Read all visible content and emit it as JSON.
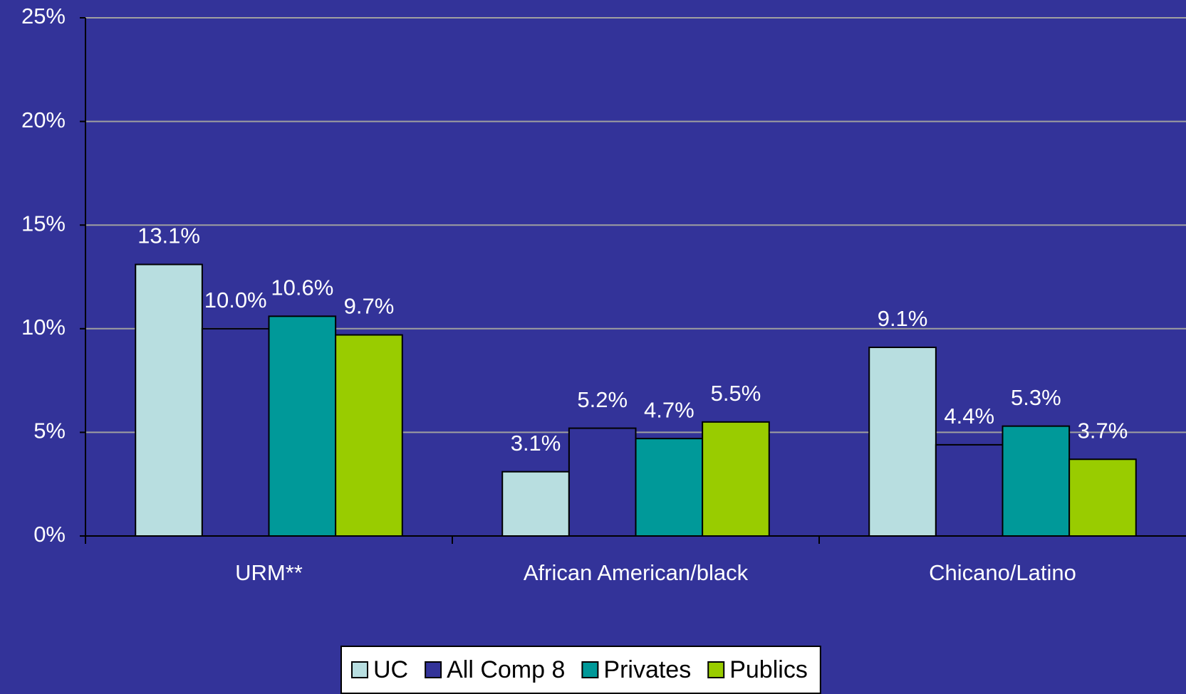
{
  "chart_data": {
    "type": "bar",
    "categories": [
      "URM**",
      "African American/black",
      "Chicano/Latino"
    ],
    "series": [
      {
        "name": "UC",
        "color": "#b8dee0",
        "values": [
          13.1,
          3.1,
          9.1
        ],
        "value_labels": [
          "13.1%",
          "3.1%",
          "9.1%"
        ]
      },
      {
        "name": "All Comp 8",
        "color": "#333399",
        "values": [
          10.0,
          5.2,
          4.4
        ],
        "value_labels": [
          "10.0%",
          "5.2%",
          "4.4%"
        ]
      },
      {
        "name": "Privates",
        "color": "#009999",
        "values": [
          10.6,
          4.7,
          5.3
        ],
        "value_labels": [
          "10.6%",
          "4.7%",
          "5.3%"
        ]
      },
      {
        "name": "Publics",
        "color": "#99cc00",
        "values": [
          9.7,
          5.5,
          3.7
        ],
        "value_labels": [
          "9.7%",
          "5.5%",
          "3.7%"
        ]
      }
    ],
    "ylim": [
      0,
      25
    ],
    "yticks": [
      {
        "value": 0,
        "label": "0%"
      },
      {
        "value": 5,
        "label": "5%"
      },
      {
        "value": 10,
        "label": "10%"
      },
      {
        "value": 15,
        "label": "15%"
      },
      {
        "value": 20,
        "label": "20%"
      },
      {
        "value": 25,
        "label": "25%"
      }
    ],
    "grid": true,
    "legend": "bottom"
  }
}
